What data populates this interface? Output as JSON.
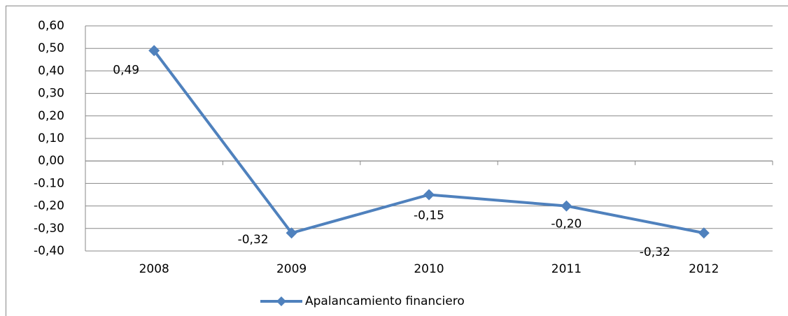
{
  "chart_data": {
    "type": "line",
    "categories": [
      "2008",
      "2009",
      "2010",
      "2011",
      "2012"
    ],
    "series": [
      {
        "name": "Apalancamiento financiero",
        "color": "#4f81bd",
        "values": [
          0.49,
          -0.32,
          -0.15,
          -0.2,
          -0.32
        ],
        "value_labels": [
          "0,49",
          "-0,32",
          "-0,15",
          "-0,20",
          "-0,32"
        ]
      }
    ],
    "ylim": [
      -0.4,
      0.6
    ],
    "yticks": [
      {
        "value": -0.4,
        "label": "-0,40"
      },
      {
        "value": -0.3,
        "label": "-0,30"
      },
      {
        "value": -0.2,
        "label": "-0,20"
      },
      {
        "value": -0.1,
        "label": "-0.10"
      },
      {
        "value": 0,
        "label": "0,00"
      },
      {
        "value": 0.1,
        "label": "0,10"
      },
      {
        "value": 0.2,
        "label": "0,20"
      },
      {
        "value": 0.3,
        "label": "0,30"
      },
      {
        "value": 0.4,
        "label": "0,40"
      },
      {
        "value": 0.5,
        "label": "0,50"
      },
      {
        "value": 0.6,
        "label": "0,60"
      }
    ],
    "grid": true,
    "legend": "bottom"
  }
}
